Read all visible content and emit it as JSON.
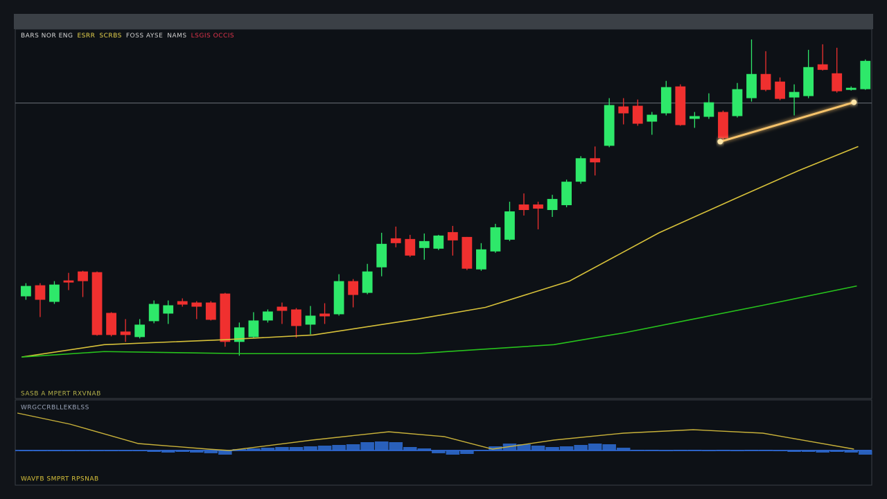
{
  "chart_data": [
    {
      "type": "candlestick",
      "legend_items": [
        {
          "text": "BARS NOR ENG",
          "color": "#d8d8d8"
        },
        {
          "text": "ESRR",
          "color": "#e8d44d"
        },
        {
          "text": "SCRBS",
          "color": "#e8d44d"
        },
        {
          "text": "FOSS AYSE",
          "color": "#cfcfcf"
        },
        {
          "text": "NAMS",
          "color": "#cfcfcf"
        },
        {
          "text": "LSGIS OCCIS",
          "color": "#e0334b"
        }
      ],
      "footer_label": "SASB A MPERT RXVNAB",
      "up_color": "#2ee86a",
      "down_color": "#f0302f",
      "xlim": [
        -0.75,
        59.45
      ],
      "ylim": [
        0,
        535
      ],
      "candles": [
        [
          148,
          167,
          143,
          163
        ],
        [
          164,
          167,
          118,
          143
        ],
        [
          140,
          170,
          137,
          165
        ],
        [
          171,
          182,
          157,
          168
        ],
        [
          184,
          185,
          147,
          170
        ],
        [
          183,
          184,
          91,
          92
        ],
        [
          124,
          125,
          90,
          92
        ],
        [
          97,
          115,
          82,
          92
        ],
        [
          89,
          115,
          87,
          107
        ],
        [
          112,
          142,
          109,
          137
        ],
        [
          123,
          142,
          108,
          135
        ],
        [
          141,
          145,
          133,
          136
        ],
        [
          139,
          141,
          115,
          133
        ],
        [
          139,
          141,
          113,
          114
        ],
        [
          152,
          153,
          75,
          82
        ],
        [
          82,
          110,
          62,
          103
        ],
        [
          89,
          125,
          87,
          113
        ],
        [
          113,
          129,
          110,
          126
        ],
        [
          133,
          139,
          108,
          127
        ],
        [
          129,
          131,
          88,
          105
        ],
        [
          107,
          134,
          93,
          120
        ],
        [
          123,
          138,
          108,
          119
        ],
        [
          122,
          180,
          120,
          170
        ],
        [
          170,
          173,
          132,
          150
        ],
        [
          153,
          195,
          151,
          184
        ],
        [
          190,
          240,
          177,
          224
        ],
        [
          232,
          249,
          219,
          225
        ],
        [
          231,
          237,
          205,
          207
        ],
        [
          218,
          239,
          201,
          228
        ],
        [
          217,
          237,
          215,
          236
        ],
        [
          241,
          250,
          207,
          229
        ],
        [
          234,
          234,
          186,
          188
        ],
        [
          187,
          225,
          185,
          216
        ],
        [
          213,
          253,
          211,
          248
        ],
        [
          230,
          285,
          228,
          271
        ],
        [
          281,
          297,
          265,
          273
        ],
        [
          281,
          285,
          245,
          275
        ],
        [
          273,
          295,
          263,
          289
        ],
        [
          280,
          317,
          277,
          314
        ],
        [
          314,
          351,
          311,
          348
        ],
        [
          348,
          365,
          323,
          342
        ],
        [
          366,
          435,
          364,
          425
        ],
        [
          423,
          435,
          397,
          413
        ],
        [
          424,
          433,
          395,
          398
        ],
        [
          401,
          415,
          382,
          411
        ],
        [
          413,
          460,
          410,
          451
        ],
        [
          452,
          455,
          395,
          396
        ],
        [
          405,
          415,
          392,
          409
        ],
        [
          408,
          442,
          405,
          429
        ],
        [
          415,
          417,
          373,
          377
        ],
        [
          409,
          457,
          407,
          448
        ],
        [
          435,
          520,
          430,
          470
        ],
        [
          470,
          503,
          445,
          447
        ],
        [
          459,
          465,
          432,
          434
        ],
        [
          436,
          455,
          410,
          444
        ],
        [
          438,
          505,
          435,
          480
        ],
        [
          484,
          513,
          475,
          476
        ],
        [
          471,
          508,
          443,
          445
        ],
        [
          447,
          452,
          446,
          450
        ],
        [
          448,
          491,
          447,
          489
        ]
      ],
      "lines": [
        {
          "color": "#d8c23a",
          "x": [
            -0.3,
            5.5,
            13.8,
            20.2,
            27.5,
            32.3,
            38.2,
            44.5,
            49.9,
            54.3,
            58.5
          ],
          "values": [
            60,
            78,
            85,
            92,
            115,
            132,
            170,
            240,
            290,
            330,
            365
          ]
        },
        {
          "color": "#27c41c",
          "x": [
            -0.3,
            5.5,
            15.2,
            27.4,
            37.1,
            42,
            46.9,
            51.8,
            58.4
          ],
          "values": [
            60,
            68,
            65,
            65,
            78,
            95,
            115,
            135,
            163
          ]
        }
      ],
      "hline": {
        "value": 428,
        "color": "#5a5f66"
      },
      "trendline": {
        "color": "#f5c26b",
        "x": [
          48.8,
          58.2
        ],
        "values": [
          372,
          429
        ]
      }
    },
    {
      "type": "indicator",
      "title": "WRGCCRBLLEKBLSS",
      "footer_label": "WAVFB SMPRT RPSNAB",
      "xlim": [
        -0.75,
        59.45
      ],
      "ylim": [
        -50,
        70
      ],
      "line": {
        "color": "#c9b23a",
        "x": [
          -0.6,
          3.1,
          7.9,
          12.8,
          14.3,
          20.1,
          25.5,
          29.4,
          32.8,
          37.1,
          42,
          46.9,
          51.8,
          58.2
        ],
        "values": [
          54,
          38,
          10,
          2,
          0,
          15,
          27,
          20,
          2,
          15,
          25,
          30,
          25,
          2
        ]
      },
      "bar_color": "#2f6fd8",
      "bars": [
        -1,
        -1,
        -1,
        -1,
        -1,
        -1,
        -1,
        -1,
        -1,
        -2,
        -3,
        -2,
        -3,
        -4,
        -6,
        2,
        3,
        4,
        5,
        5,
        6,
        7,
        8,
        9,
        12,
        13,
        12,
        5,
        3,
        -4,
        -6,
        -5,
        1,
        6,
        10,
        9,
        7,
        5,
        6,
        8,
        10,
        9,
        4,
        1,
        1,
        0,
        1,
        1,
        0,
        1,
        0,
        1,
        1,
        0,
        -2,
        -2,
        -3,
        -2,
        -3,
        -6
      ]
    }
  ]
}
